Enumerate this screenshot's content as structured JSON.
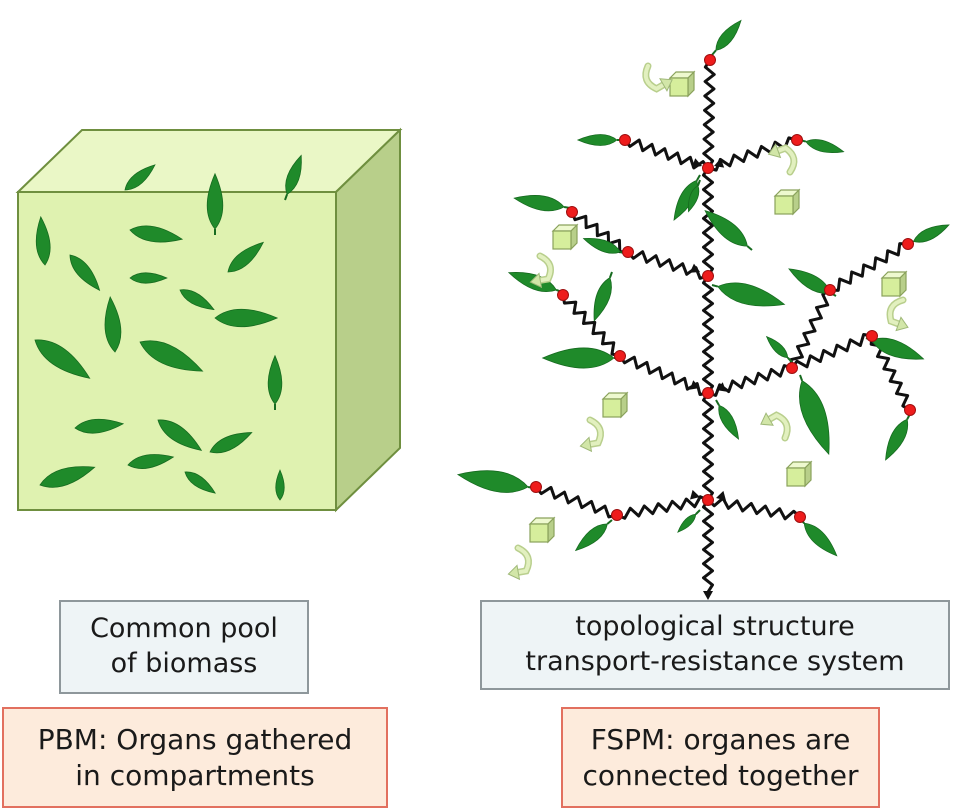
{
  "pbm": {
    "pool_label_line1": "Common pool",
    "pool_label_line2": "of biomass",
    "caption_line1": "PBM: Organs gathered",
    "caption_line2": "in compartments"
  },
  "fspm": {
    "structure_label_line1": "topological structure",
    "structure_label_line2": "transport-resistance system",
    "caption_line1": "FSPM: organes are",
    "caption_line2": "connected together"
  },
  "colors": {
    "leaf": "#1f8a2a",
    "box_front": "#dff2b0",
    "box_top": "#eaf7c6",
    "box_side": "#b8cf8a",
    "node": "#ee1c1c",
    "spring": "#111111",
    "cube": "#d6ee9c",
    "arrow": "#d2e6a8"
  }
}
